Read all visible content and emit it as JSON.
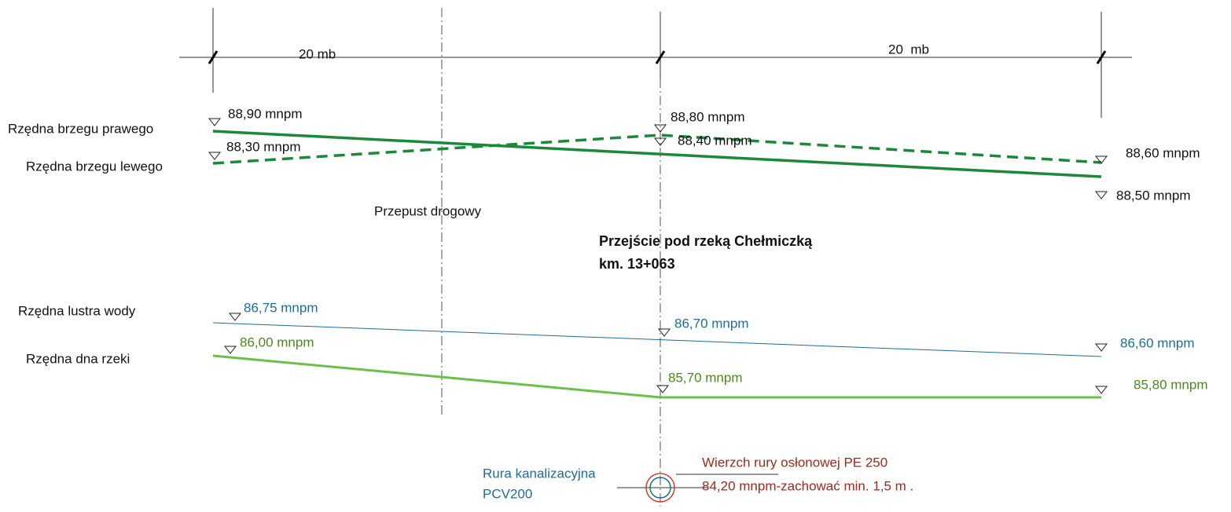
{
  "dimensions": {
    "left": "20 mb",
    "right": "20  mb"
  },
  "labels": {
    "right_bank": "Rzędna brzegu prawego",
    "left_bank": "Rzędna brzegu lewego",
    "water_level": "Rzędna lustra wody",
    "river_bed": "Rzędna dna rzeki",
    "culvert": "Przepust drogowy"
  },
  "title": {
    "line1": "Przejście pod rzeką Chełmiczką",
    "line2": "km. 13+063"
  },
  "elevations": {
    "right_bank": [
      "88,90 mnpm",
      "88,40 mnpm",
      "88,50 mnpm"
    ],
    "left_bank": [
      "88,30 mnpm",
      "88,80 mnpm",
      "88,60 mnpm"
    ],
    "water": [
      "86,75 mnpm",
      "86,70 mnpm",
      "86,60 mnpm"
    ],
    "bed": [
      "86,00 mnpm",
      "85,70 mnpm",
      "85,80 mnpm"
    ]
  },
  "pipe": {
    "name_line1": "Rura kanalizacyjna",
    "name_line2": "PCV200",
    "casing_line1": "Wierzch rury osłonowej PE 250",
    "casing_line2": "84,20 mnpm-zachować min. 1,5 m ."
  }
}
